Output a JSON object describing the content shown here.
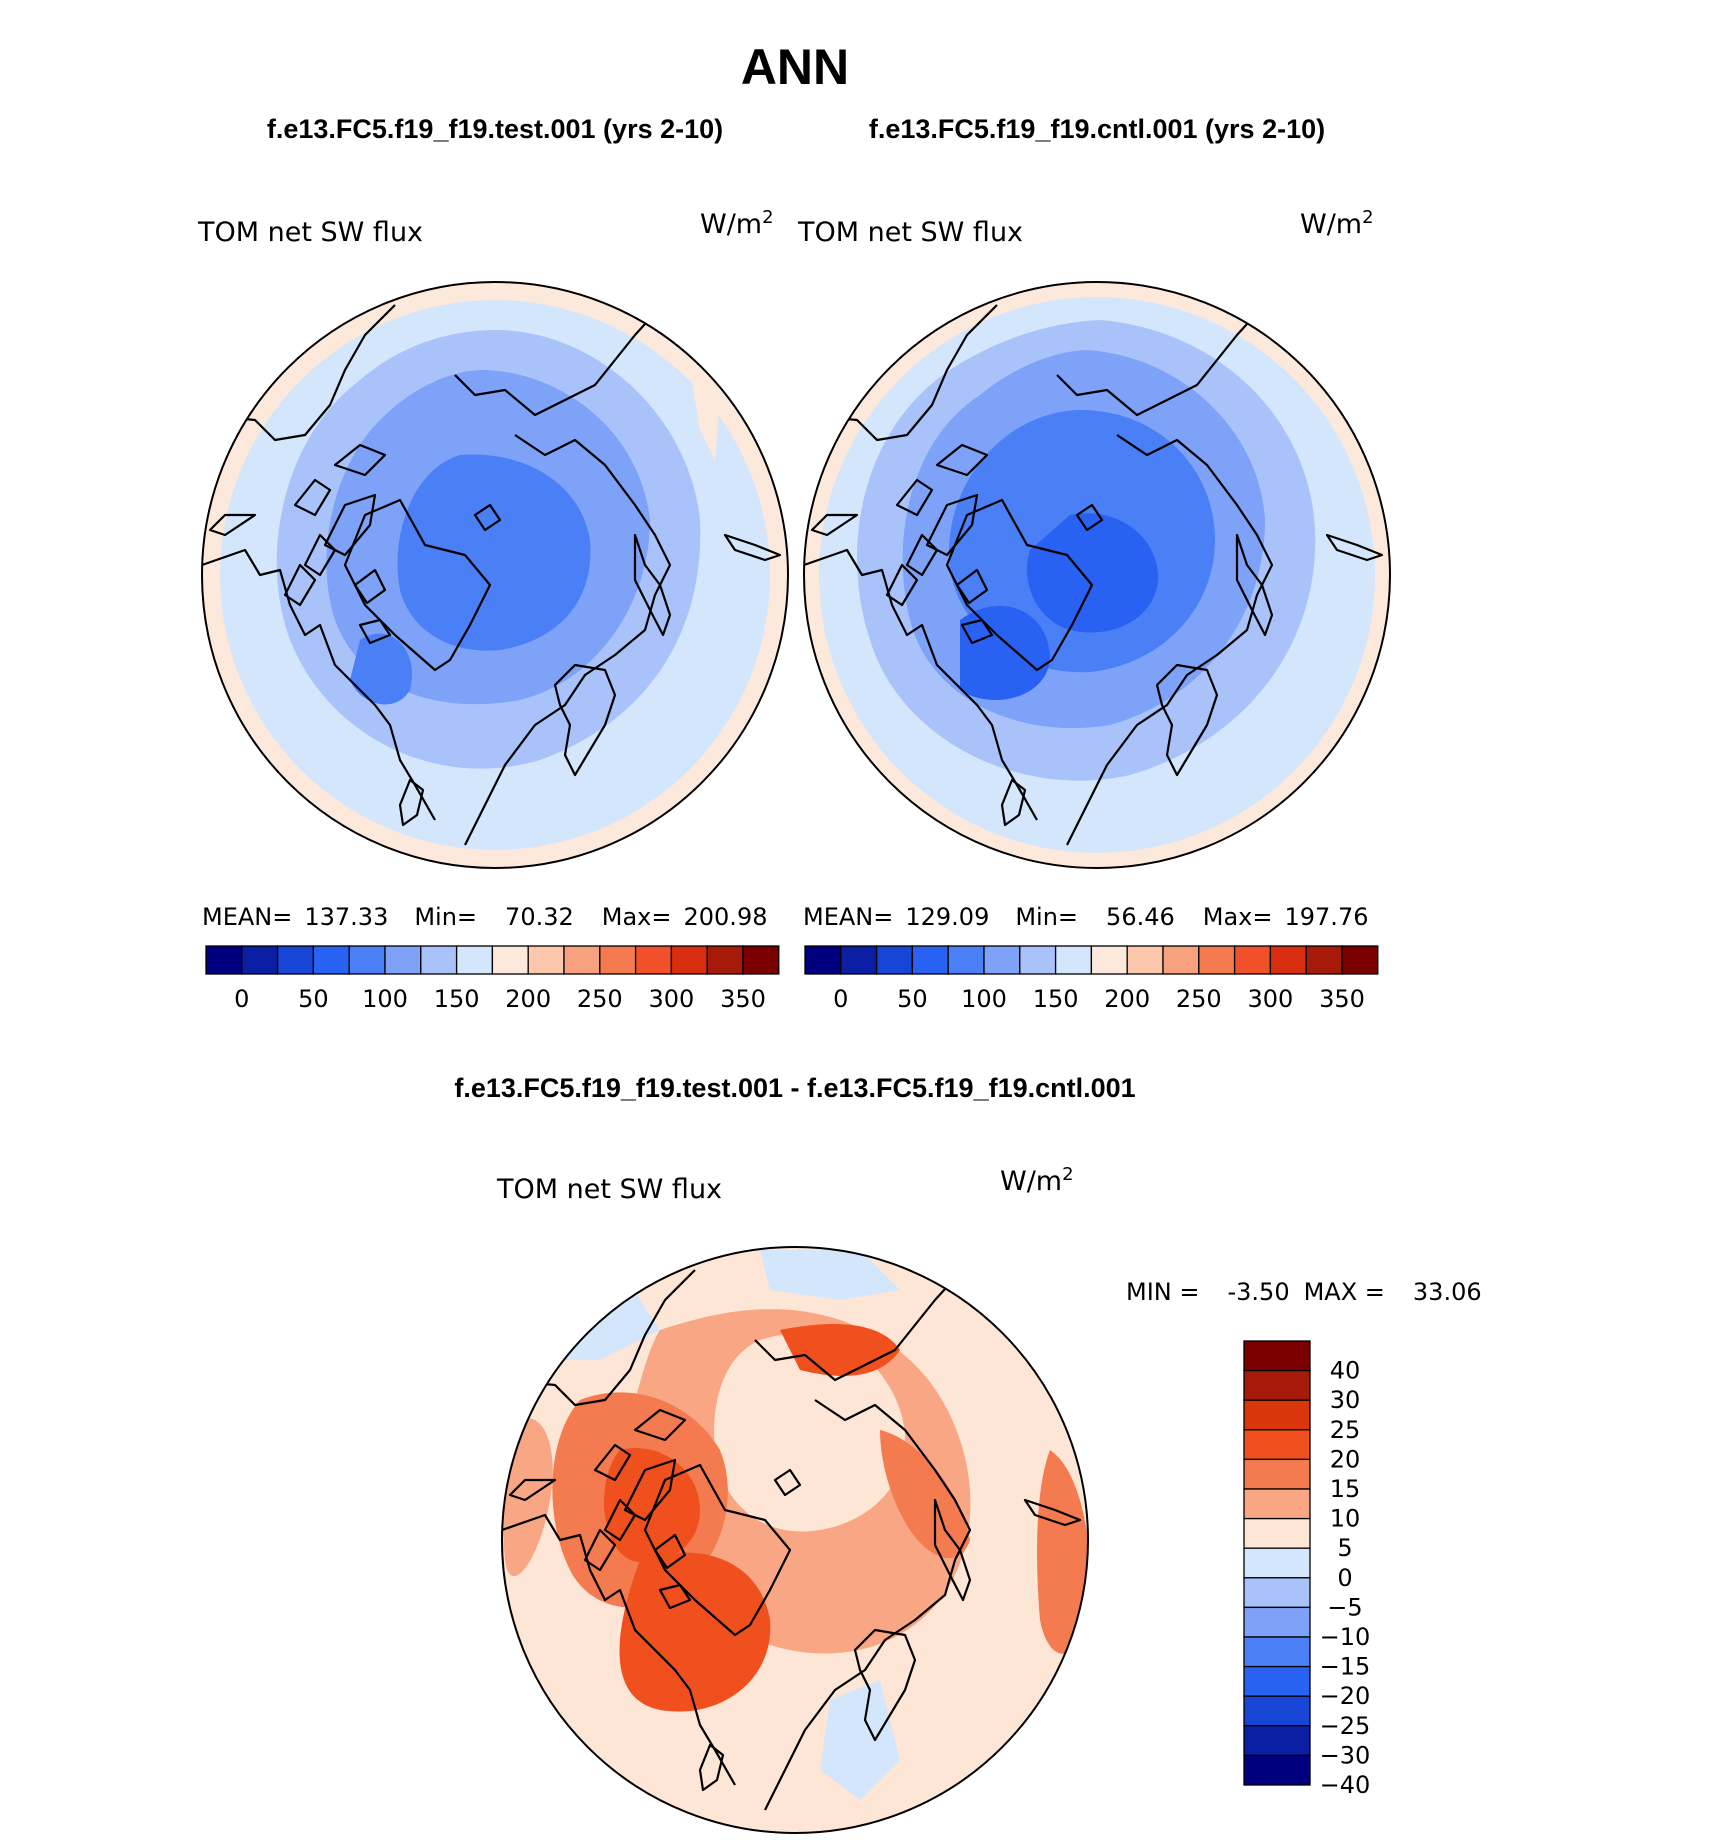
{
  "figure": {
    "title": "ANN",
    "test_case_title": "f.e13.FC5.f19_f19.test.001 (yrs 2-10)",
    "cntl_case_title": "f.e13.FC5.f19_f19.cntl.001 (yrs 2-10)",
    "diff_title": "f.e13.FC5.f19_f19.test.001 - f.e13.FC5.f19_f19.cntl.001"
  },
  "panels": {
    "test": {
      "variable": "TOM net SW flux",
      "units": "W/m",
      "units_exp": "2",
      "stats": {
        "mean_label": "MEAN=",
        "mean": "137.33",
        "min_label": "Min=",
        "min": "70.32",
        "max_label": "Max=",
        "max": "200.98"
      },
      "labelbar_ticks": [
        "0",
        "50",
        "100",
        "150",
        "200",
        "250",
        "300",
        "350"
      ]
    },
    "cntl": {
      "variable": "TOM net SW flux",
      "units": "W/m",
      "units_exp": "2",
      "stats": {
        "mean_label": "MEAN=",
        "mean": "129.09",
        "min_label": "Min=",
        "min": "56.46",
        "max_label": "Max=",
        "max": "197.76"
      },
      "labelbar_ticks": [
        "0",
        "50",
        "100",
        "150",
        "200",
        "250",
        "300",
        "350"
      ]
    },
    "diff": {
      "variable": "TOM net SW flux",
      "units": "W/m",
      "units_exp": "2",
      "stats": {
        "min_label": "MIN =",
        "min": "-3.50",
        "max_label": "MAX =",
        "max": "33.06"
      },
      "labelbar_ticks": [
        "40",
        "30",
        "25",
        "20",
        "15",
        "10",
        "5",
        "0",
        "−5",
        "−10",
        "−15",
        "−20",
        "−25",
        "−30",
        "−40"
      ]
    }
  },
  "colors": {
    "abs_scale": [
      "#00007f",
      "#0a1fa3",
      "#1746d6",
      "#2962f2",
      "#4a7ff5",
      "#7da2f7",
      "#a9c3fa",
      "#d4e6fb",
      "#fde9dc",
      "#fcc7ad",
      "#f8a17f",
      "#f47a4f",
      "#f0512a",
      "#d92f10",
      "#a61a0a",
      "#7a0000"
    ],
    "diff_scale": [
      "#7a0000",
      "#a61a0a",
      "#d9360c",
      "#f0501e",
      "#f47a4f",
      "#f8a684",
      "#fde6d6",
      "#d4e6fb",
      "#a9c3fa",
      "#7da2f7",
      "#4a7ff5",
      "#2962f2",
      "#1746d6",
      "#0a1fa3",
      "#00007f"
    ]
  }
}
